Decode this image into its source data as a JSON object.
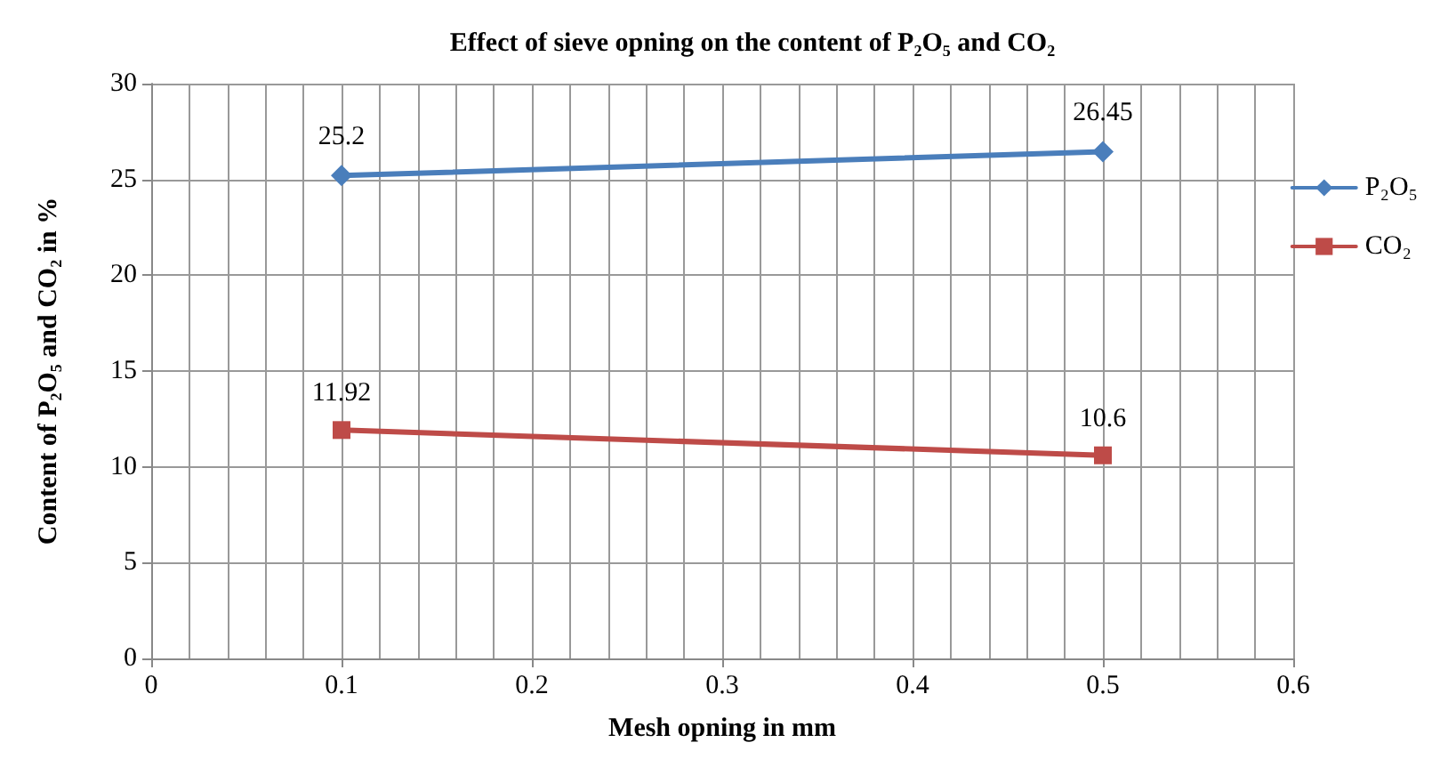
{
  "chart_data": {
    "type": "line",
    "title": "Effect of sieve opning on the content of P₂O₅ and CO₂",
    "xlabel": "Mesh opning in mm",
    "ylabel": "Content of P₂O₅ and CO₂ in %",
    "x": [
      0.1,
      0.5
    ],
    "series": [
      {
        "name": "P₂O₅",
        "color": "#4a7ebb",
        "marker": "diamond",
        "values": [
          25.2,
          26.45
        ]
      },
      {
        "name": "CO₂",
        "color": "#be4b48",
        "marker": "square",
        "values": [
          11.92,
          10.6
        ]
      }
    ],
    "xlim": [
      0,
      0.6
    ],
    "xticks": [
      0,
      0.1,
      0.2,
      0.3,
      0.4,
      0.5,
      0.6
    ],
    "ylim": [
      0,
      30
    ],
    "yticks": [
      0,
      5,
      10,
      15,
      20,
      25,
      30
    ],
    "grid": true,
    "legend": "right",
    "data_labels": true,
    "line_style": "solid"
  }
}
